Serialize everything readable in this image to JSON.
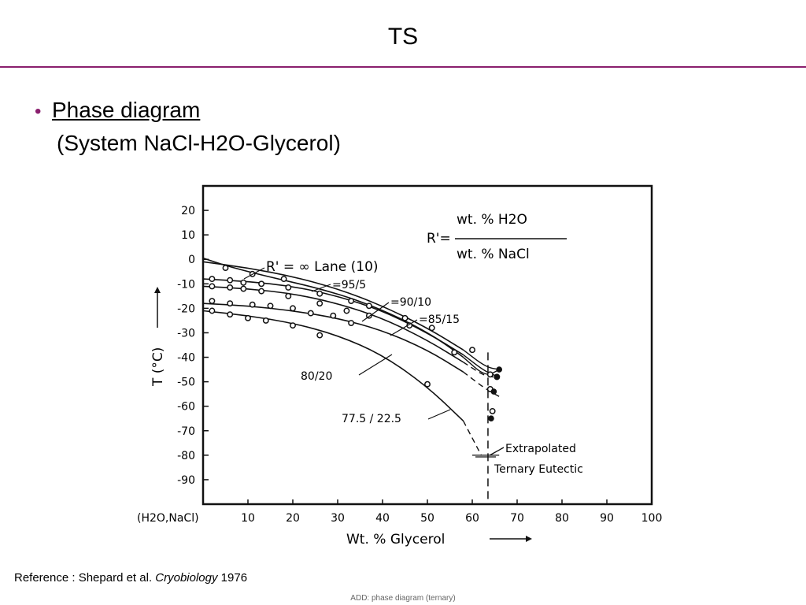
{
  "slide": {
    "title": "TS",
    "bullet_main": "Phase diagram",
    "bullet_sub": "(System NaCl-H2O-Glycerol)",
    "reference_prefix": "Reference : Shepard et al. ",
    "reference_journal": "Cryobiology",
    "reference_year": " 1976",
    "footer": "ADD: phase diagram (ternary)"
  },
  "colors": {
    "accent": "#8a1f6e",
    "ink": "#111111"
  },
  "chart_data": {
    "type": "line",
    "title": "",
    "xlabel": "Wt. % Glycerol",
    "xlabel_origin": "(H2O,NaCl)",
    "ylabel": "T (°C)",
    "xlim": [
      0,
      100
    ],
    "ylim": [
      -100,
      30
    ],
    "xticks": [
      10,
      20,
      30,
      40,
      50,
      60,
      70,
      80,
      90,
      100
    ],
    "yticks": [
      20,
      10,
      0,
      -10,
      -20,
      -30,
      -40,
      -50,
      -60,
      -70,
      -80,
      -90
    ],
    "formula": {
      "lhs": "R'=",
      "numerator": "wt. % H2O",
      "denominator": "wt. % NaCl"
    },
    "series": [
      {
        "name": "R' = ∞ Lane (10)",
        "x": [
          0,
          5,
          11,
          18,
          26,
          35,
          44,
          52,
          58,
          63,
          66
        ],
        "y": [
          0.5,
          -2.5,
          -5.5,
          -8.5,
          -12,
          -17,
          -24,
          -32,
          -40,
          -48,
          -45
        ],
        "points": []
      },
      {
        "name": "=95/5",
        "x": [
          0,
          10,
          20,
          30,
          40,
          50,
          58,
          63,
          66
        ],
        "y": [
          -1,
          -3.5,
          -7,
          -12,
          -19,
          -28,
          -37,
          -44,
          -45
        ],
        "points": [
          [
            5,
            -3.5
          ],
          [
            11,
            -6
          ],
          [
            18,
            -8
          ]
        ]
      },
      {
        "name": "=90/10",
        "x": [
          0,
          10,
          20,
          30,
          40,
          50,
          58,
          63,
          66
        ],
        "y": [
          -8,
          -9,
          -11,
          -15,
          -21,
          -30,
          -39,
          -46,
          -48
        ],
        "points": [
          [
            2,
            -8
          ],
          [
            6,
            -8.5
          ],
          [
            9,
            -9.5
          ],
          [
            13,
            -10
          ],
          [
            19,
            -11.5
          ],
          [
            26,
            -14
          ],
          [
            33,
            -17
          ],
          [
            37,
            -19
          ],
          [
            45,
            -24
          ],
          [
            51,
            -28
          ],
          [
            60,
            -37
          ],
          [
            64,
            -47
          ],
          [
            65.5,
            -48
          ]
        ]
      },
      {
        "name": "=85/15",
        "x": [
          0,
          10,
          20,
          30,
          40,
          50,
          58,
          63,
          66
        ],
        "y": [
          -11,
          -12,
          -14,
          -18,
          -24,
          -33,
          -42,
          -48,
          -48
        ],
        "points": [
          [
            2,
            -11
          ],
          [
            6,
            -11.5
          ],
          [
            9,
            -12
          ],
          [
            13,
            -13
          ],
          [
            19,
            -15
          ],
          [
            26,
            -18
          ],
          [
            32,
            -21
          ],
          [
            37,
            -23
          ],
          [
            46,
            -27
          ],
          [
            56,
            -38
          ],
          [
            64,
            -53
          ]
        ]
      },
      {
        "name": "80/20",
        "x": [
          0,
          10,
          20,
          30,
          40,
          50,
          58,
          63,
          66
        ],
        "y": [
          -18,
          -19,
          -21,
          -24,
          -29,
          -37,
          -46,
          -53,
          -56
        ],
        "points": [
          [
            2,
            -17
          ],
          [
            6,
            -18
          ],
          [
            11,
            -18.5
          ],
          [
            15,
            -19
          ],
          [
            20,
            -20
          ],
          [
            24,
            -22
          ],
          [
            29,
            -23
          ],
          [
            33,
            -26
          ],
          [
            64.5,
            -62
          ]
        ]
      },
      {
        "name": "77.5 / 22.5",
        "x": [
          0,
          10,
          20,
          30,
          40,
          50,
          58,
          62
        ],
        "y": [
          -21,
          -23,
          -26,
          -31,
          -39,
          -52,
          -66,
          -80
        ],
        "points": [
          [
            2,
            -21
          ],
          [
            6,
            -22.5
          ],
          [
            10,
            -24
          ],
          [
            14,
            -25
          ],
          [
            20,
            -27
          ],
          [
            26,
            -31
          ],
          [
            50,
            -51
          ]
        ]
      }
    ],
    "vertical_line_x": 63.5,
    "annotations": [
      "Extrapolated",
      "Ternary Eutectic"
    ]
  }
}
